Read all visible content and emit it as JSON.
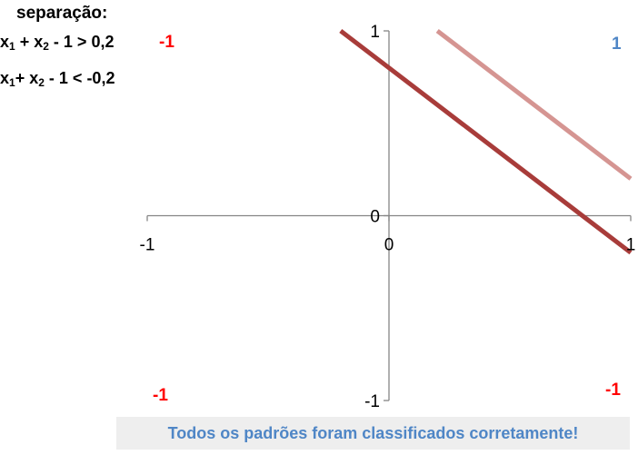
{
  "header": {
    "title": "separação:",
    "ineq1": {
      "var1": "x",
      "sub1": "1",
      "plus": " + ",
      "var2": "x",
      "sub2": "2",
      "rest": " - 1 > 0,2"
    },
    "ineq2": {
      "var1": "x",
      "sub1": "1",
      "plus": "+ ",
      "var2": "x",
      "sub2": "2",
      "rest": " - 1 < -0,2"
    }
  },
  "quadrant_labels": {
    "top_left": "-1",
    "top_right": "1",
    "bottom_left": "-1",
    "bottom_right": "-1"
  },
  "colors": {
    "negative": "#ff0000",
    "positive": "#4f86c6",
    "line_dark": "#a83c3a",
    "line_light": "#d59592",
    "axis": "#868686"
  },
  "status": "Todos os padrões foram classificados corretamente!",
  "chart_data": {
    "type": "line",
    "title": "",
    "xlabel": "",
    "ylabel": "",
    "xlim": [
      -1,
      1
    ],
    "ylim": [
      -1,
      1
    ],
    "x_ticks": [
      "-1",
      "0",
      "1"
    ],
    "y_ticks": [
      "-1",
      "0",
      "1"
    ],
    "grid": false,
    "series": [
      {
        "x": [
          -0.2,
          1
        ],
        "y": [
          1,
          -0.2
        ],
        "color": "#a83c3a"
      },
      {
        "x": [
          0.2,
          1
        ],
        "y": [
          1,
          0.2
        ],
        "color": "#d59592"
      }
    ]
  }
}
